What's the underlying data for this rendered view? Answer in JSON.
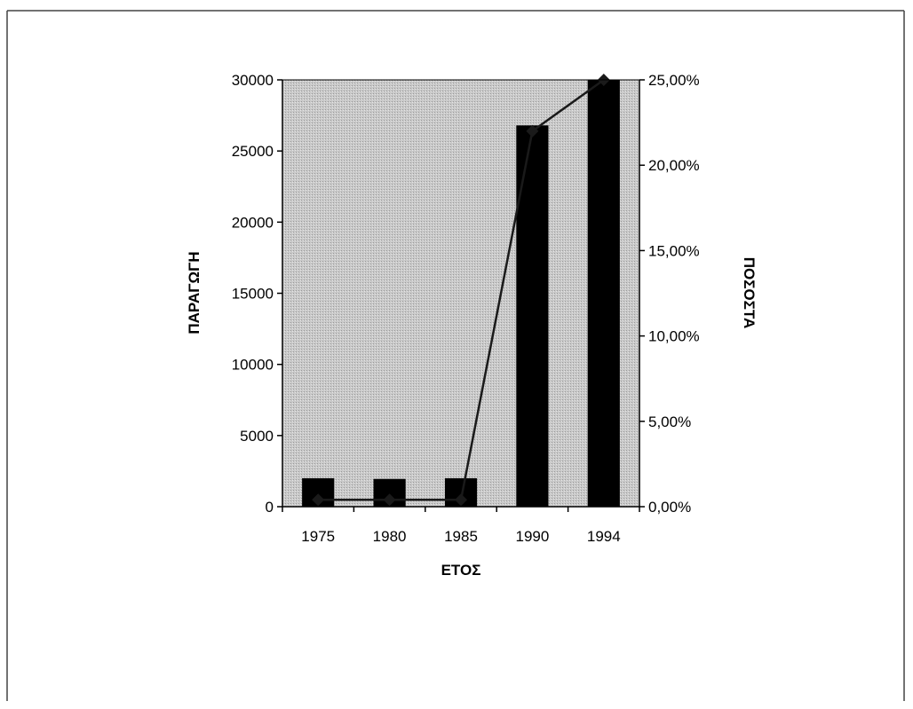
{
  "chart_data": {
    "type": "bar+line",
    "categories": [
      "1975",
      "1980",
      "1985",
      "1990",
      "1994"
    ],
    "xlabel": "ΕΤΟΣ",
    "ylabel": "ΠΑΡΑΓΩΓΗ",
    "y2label": "ΠΟΣΟΣΤΑ",
    "ylim": [
      0,
      30000
    ],
    "y2lim": [
      0,
      0.25
    ],
    "yticks": [
      "0",
      "5000",
      "10000",
      "15000",
      "20000",
      "25000",
      "30000"
    ],
    "y2ticks": [
      "0,00%",
      "5,00%",
      "10,00%",
      "15,00%",
      "20,00%",
      "25,00%"
    ],
    "series": [
      {
        "kind": "bar",
        "axis": "left",
        "values": [
          2000,
          1950,
          2000,
          26800,
          30000
        ]
      },
      {
        "kind": "line",
        "axis": "right",
        "values": [
          0.004,
          0.004,
          0.004,
          0.22,
          0.25
        ]
      }
    ],
    "plot_background": "#c8c8c8",
    "bar_color": "#000000",
    "line_color": "#1a1a1a",
    "grid": false,
    "legend": "none"
  }
}
